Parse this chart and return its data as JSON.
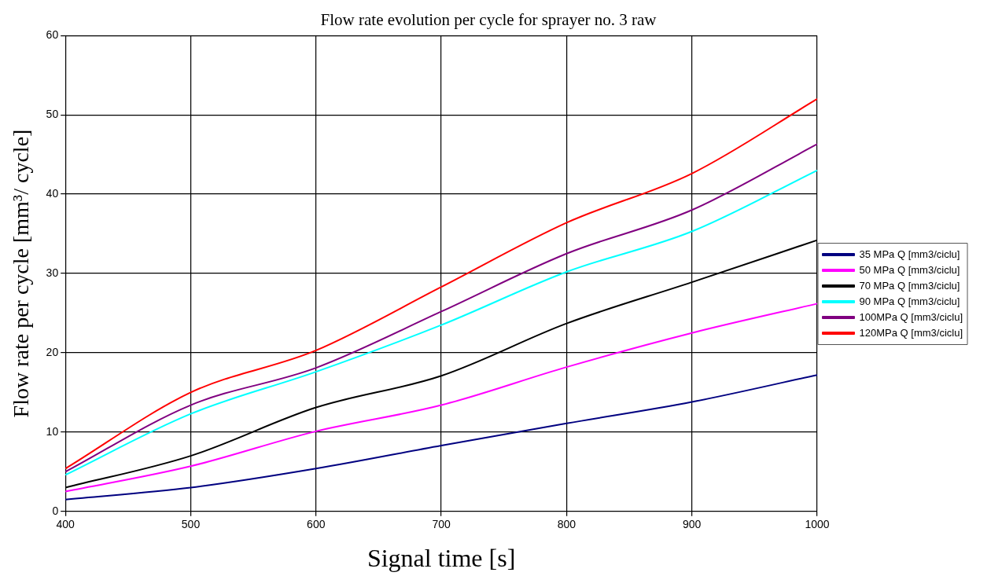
{
  "chart_data": {
    "type": "line",
    "title": "Flow rate evolution per cycle for sprayer no. 3 raw",
    "xlabel": "Signal time [s]",
    "ylabel": "Flow rate per cycle [mm³/ cycle]",
    "x": [
      400,
      500,
      600,
      700,
      800,
      900,
      1000
    ],
    "xlim": [
      400,
      1000
    ],
    "xticks": [
      400,
      500,
      600,
      700,
      800,
      900,
      1000
    ],
    "ylim": [
      0,
      60
    ],
    "yticks": [
      0,
      10,
      20,
      30,
      40,
      50,
      60
    ],
    "grid": true,
    "legend": "right",
    "marker": "none",
    "line_style": "solid",
    "series": [
      {
        "name": "35 MPa Q [mm3/ciclu]",
        "color": "#000080",
        "values": [
          1.5,
          3,
          5.4,
          8.3,
          11.1,
          13.8,
          17.2
        ]
      },
      {
        "name": "50 MPa Q [mm3/ciclu]",
        "color": "#ff00ff",
        "values": [
          2.5,
          5.7,
          10.1,
          13.4,
          18.2,
          22.5,
          26.2
        ]
      },
      {
        "name": "70 MPa Q [mm3/ciclu]",
        "color": "#000000",
        "values": [
          3,
          7,
          13.1,
          17.1,
          23.7,
          28.9,
          34.2
        ]
      },
      {
        "name": "90 MPa Q [mm3/ciclu]",
        "color": "#00ffff",
        "values": [
          4.6,
          12.3,
          17.6,
          23.5,
          30.2,
          35.3,
          43
        ]
      },
      {
        "name": "100MPa Q [mm3/ciclu]",
        "color": "#800080",
        "values": [
          5,
          13.4,
          18.1,
          25.2,
          32.5,
          38,
          46.3
        ]
      },
      {
        "name": "120MPa Q [mm3/ciclu]",
        "color": "#ff0000",
        "values": [
          5.4,
          15,
          20.3,
          28.3,
          36.4,
          42.6,
          52
        ]
      }
    ]
  }
}
